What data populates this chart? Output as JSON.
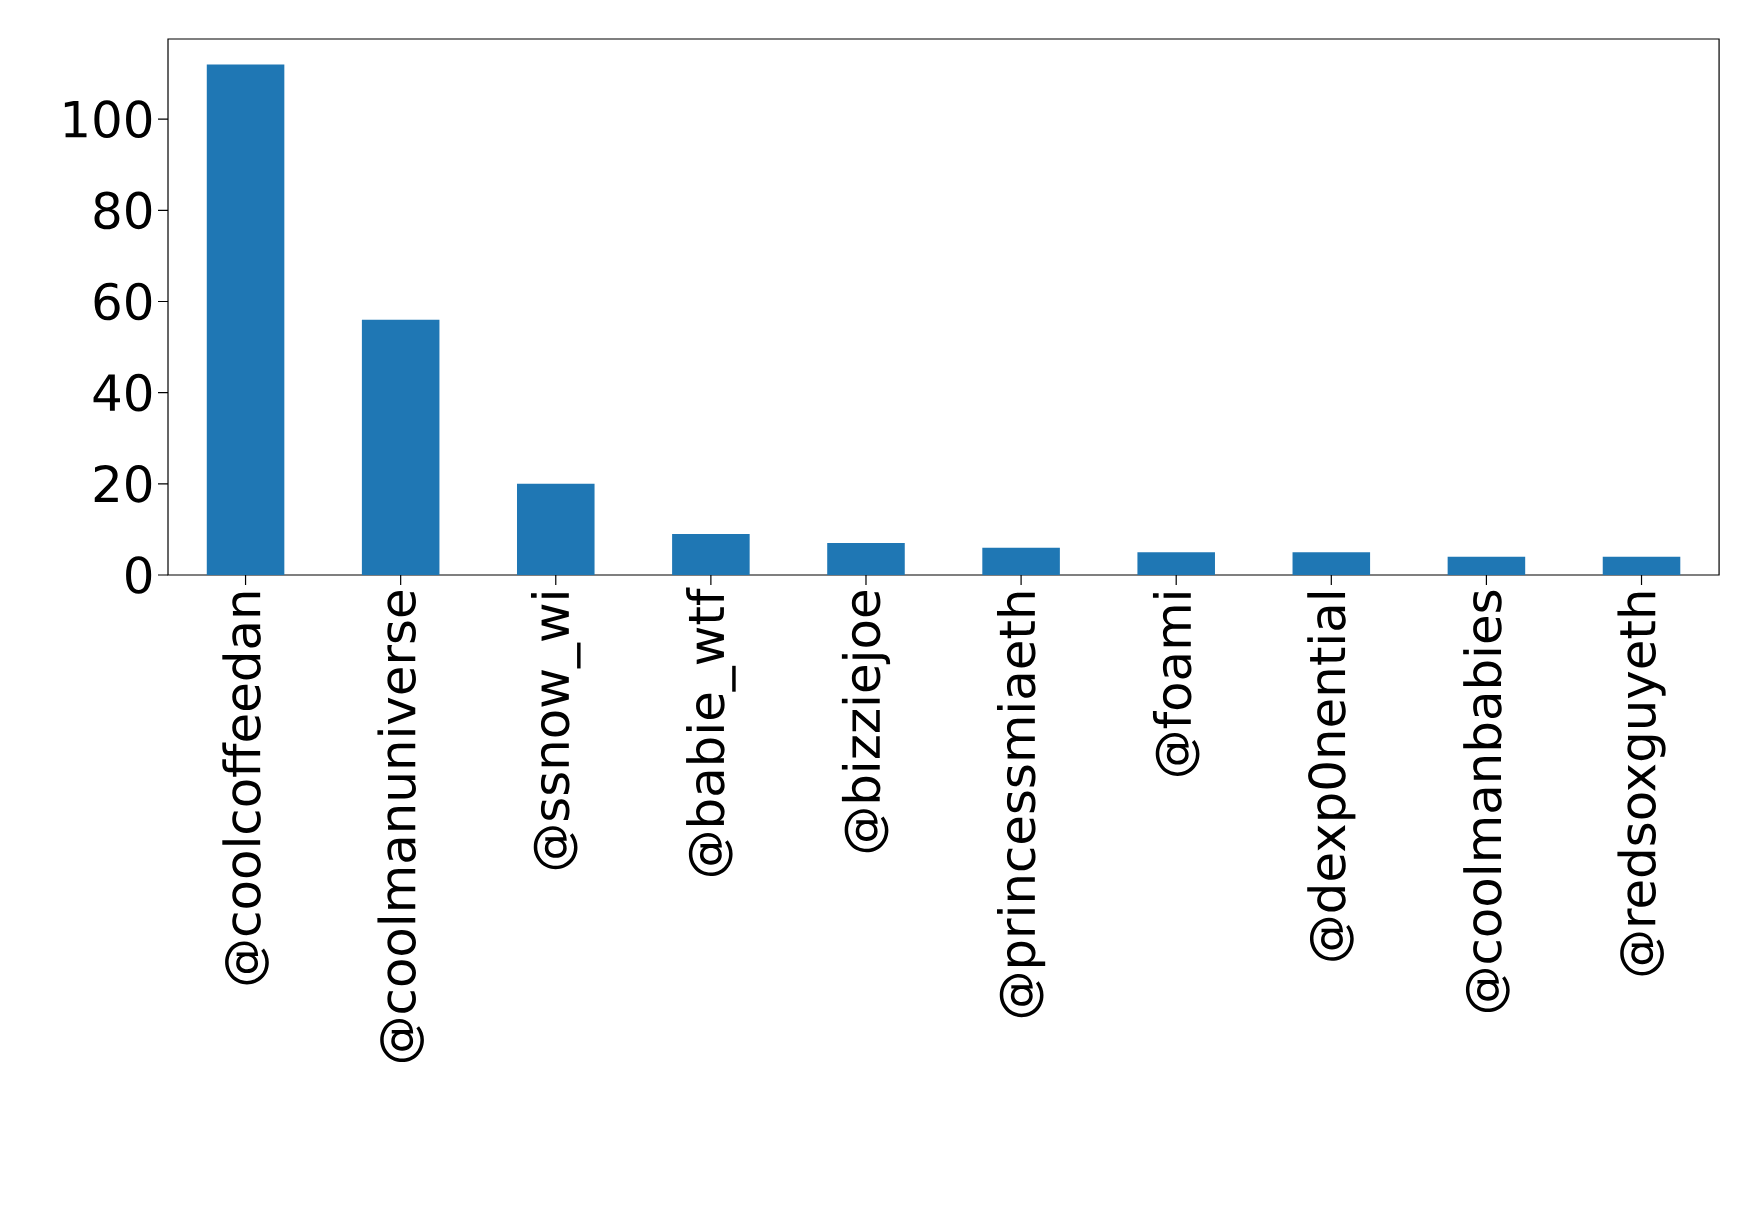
{
  "chart_data": {
    "type": "bar",
    "categories": [
      "@coolcoffeedan",
      "@coolmanuniverse",
      "@ssnow_wi",
      "@babie_wtf",
      "@bizziejoe",
      "@princessmiaeth",
      "@foami",
      "@dexp0nential",
      "@coolmanbabies",
      "@redsoxguyeth"
    ],
    "values": [
      112,
      56,
      20,
      9,
      7,
      6,
      5,
      5,
      4,
      4
    ],
    "color": "#1f77b4",
    "ylim": [
      0,
      117.6
    ],
    "yticks": [
      0,
      20,
      40,
      60,
      80,
      100
    ]
  }
}
